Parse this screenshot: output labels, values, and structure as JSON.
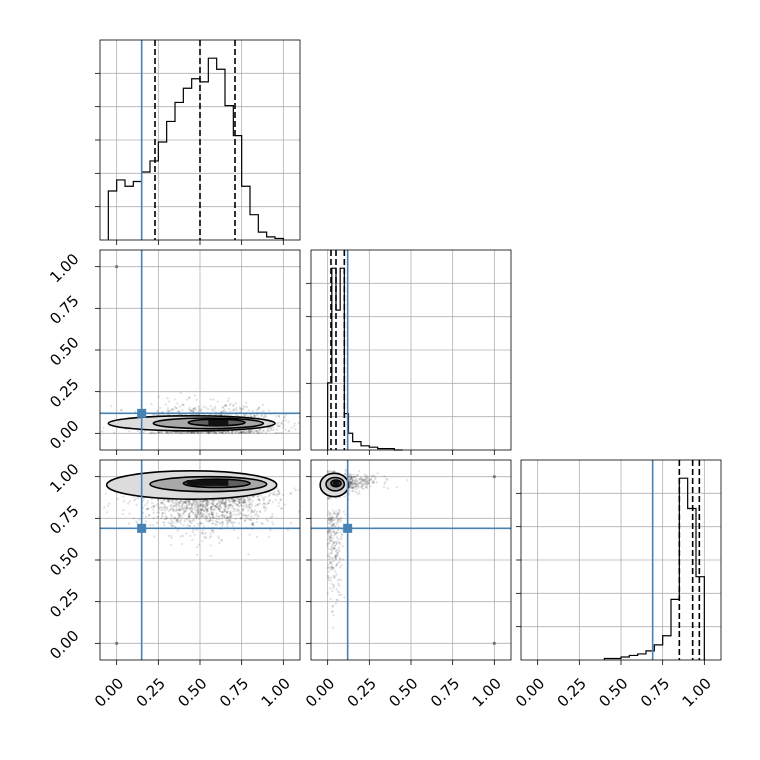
{
  "chart_data": [
    {
      "type": "histogram",
      "panel": "row1-col1",
      "xlim": [
        -0.1,
        1.1
      ],
      "truth": 0.15,
      "quantiles": [
        0.23,
        0.5,
        0.71
      ],
      "bins": [
        -0.05,
        0.0,
        0.05,
        0.1,
        0.15,
        0.2,
        0.25,
        0.3,
        0.35,
        0.4,
        0.45,
        0.5,
        0.55,
        0.6,
        0.65,
        0.7,
        0.75,
        0.8,
        0.85,
        0.9,
        0.95,
        1.0
      ],
      "counts": [
        31,
        38,
        34,
        37,
        43,
        50,
        62,
        75,
        87,
        96,
        102,
        100,
        115,
        108,
        85,
        66,
        34,
        16,
        5,
        2,
        1
      ],
      "grid": true
    },
    {
      "type": "scatter",
      "panel": "row2-col1",
      "xlim": [
        -0.1,
        1.1
      ],
      "ylim": [
        -0.1,
        1.1
      ],
      "truth": {
        "x": 0.15,
        "y": 0.12
      },
      "density_peak": {
        "x": 0.6,
        "y": 0.06
      },
      "outliers": [
        {
          "x": 0.0,
          "y": 1.0
        }
      ],
      "grid": true
    },
    {
      "type": "histogram",
      "panel": "row2-col2",
      "xlim": [
        -0.1,
        1.1
      ],
      "truth": 0.12,
      "quantiles": [
        0.02,
        0.05,
        0.1
      ],
      "bins": [
        0.0,
        0.025,
        0.05,
        0.075,
        0.1,
        0.125,
        0.15,
        0.2,
        0.25,
        0.3,
        0.35,
        0.4,
        0.45
      ],
      "counts": [
        48,
        130,
        100,
        130,
        26,
        12,
        6,
        3,
        2,
        1,
        1,
        0
      ],
      "grid": true
    },
    {
      "type": "scatter",
      "panel": "row3-col1",
      "xlim": [
        -0.1,
        1.1
      ],
      "ylim": [
        -0.1,
        1.1
      ],
      "truth": {
        "x": 0.15,
        "y": 0.69
      },
      "density_peak": {
        "x": 0.6,
        "y": 0.96
      },
      "outliers": [
        {
          "x": 0.0,
          "y": 0.0
        }
      ],
      "grid": true
    },
    {
      "type": "scatter",
      "panel": "row3-col2",
      "xlim": [
        -0.1,
        1.1
      ],
      "ylim": [
        -0.1,
        1.1
      ],
      "truth": {
        "x": 0.12,
        "y": 0.69
      },
      "density_peak": {
        "x": 0.05,
        "y": 0.96
      },
      "outliers": [
        {
          "x": 1.0,
          "y": 1.0
        },
        {
          "x": 1.0,
          "y": 0.0
        }
      ],
      "grid": true
    },
    {
      "type": "histogram",
      "panel": "row3-col3",
      "xlim": [
        -0.1,
        1.1
      ],
      "truth": 0.69,
      "quantiles": [
        0.85,
        0.93,
        0.97
      ],
      "bins": [
        0.4,
        0.45,
        0.5,
        0.55,
        0.6,
        0.65,
        0.7,
        0.75,
        0.8,
        0.85,
        0.9,
        0.95,
        1.0
      ],
      "counts": [
        1,
        1,
        2,
        3,
        4,
        6,
        10,
        16,
        40,
        120,
        100,
        55
      ],
      "grid": true
    }
  ],
  "axes": {
    "tick_values": [
      0.0,
      0.25,
      0.5,
      0.75,
      1.0
    ],
    "tick_labels": [
      "0.00",
      "0.25",
      "0.50",
      "0.75",
      "1.00"
    ]
  },
  "colors": {
    "truth": "#4682b4",
    "hist": "#000000",
    "grid": "#b0b0b0",
    "scatter": "#000000"
  }
}
